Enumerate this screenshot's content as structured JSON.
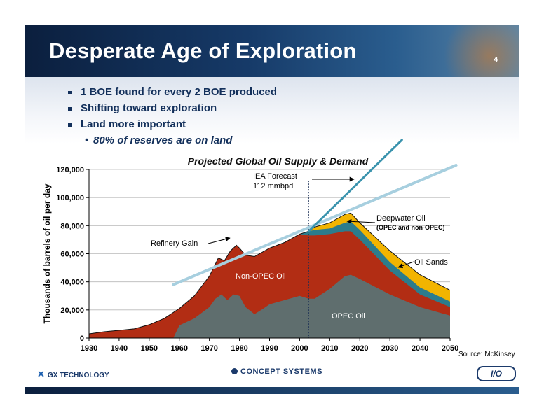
{
  "slide": {
    "title": "Desperate Age of Exploration",
    "page_number": "4",
    "bullets": [
      "1 BOE found for every 2 BOE produced",
      "Shifting toward exploration",
      "Land more important"
    ],
    "sub_bullet": "80% of reserves are on land",
    "source": "Source: McKinsey",
    "logos": [
      "GX TECHNOLOGY",
      "CONCEPT SYSTEMS",
      "I/O"
    ]
  },
  "chart_data": {
    "type": "area",
    "title": "Projected Global Oil Supply & Demand",
    "ylabel": "Thousands of barrels of oil per day",
    "xlabel": "",
    "xlim": [
      1930,
      2050
    ],
    "ylim": [
      0,
      120000
    ],
    "x_ticks": [
      1930,
      1940,
      1950,
      1960,
      1970,
      1980,
      1990,
      2000,
      2010,
      2020,
      2030,
      2040,
      2050
    ],
    "y_ticks": [
      0,
      20000,
      40000,
      60000,
      80000,
      100000,
      120000
    ],
    "y_tick_labels": [
      "0",
      "20,000",
      "40,000",
      "60,000",
      "80,000",
      "100,000",
      "120,000"
    ],
    "stack_order": [
      "OPEC Oil",
      "Non-OPEC Oil",
      "Deepwater Oil",
      "Oil Sands"
    ],
    "colors": {
      "opec": "#5f6e6e",
      "nonopec": "#b22d14",
      "deepwater": "#2c7c8c",
      "oilsands": "#f2b400",
      "trend": "#a7cfdf",
      "forecast": "#3a93ad"
    },
    "stack_top_points": [
      [
        1930,
        3000
      ],
      [
        1935,
        4500
      ],
      [
        1940,
        5500
      ],
      [
        1945,
        6500
      ],
      [
        1950,
        9500
      ],
      [
        1955,
        14000
      ],
      [
        1960,
        21000
      ],
      [
        1965,
        30000
      ],
      [
        1970,
        44000
      ],
      [
        1973,
        57000
      ],
      [
        1975,
        55000
      ],
      [
        1977,
        62000
      ],
      [
        1979,
        66000
      ],
      [
        1980,
        64000
      ],
      [
        1982,
        59000
      ],
      [
        1985,
        58000
      ],
      [
        1990,
        64000
      ],
      [
        1995,
        68000
      ],
      [
        2000,
        74000
      ],
      [
        2003,
        76000
      ],
      [
        2005,
        79000
      ],
      [
        2010,
        82000
      ],
      [
        2015,
        88000
      ],
      [
        2017,
        89000
      ],
      [
        2020,
        82000
      ],
      [
        2030,
        62000
      ],
      [
        2040,
        45000
      ],
      [
        2050,
        34000
      ]
    ],
    "series": [
      {
        "name": "OPEC Oil",
        "points": [
          [
            1930,
            0
          ],
          [
            1958,
            0
          ],
          [
            1960,
            9000
          ],
          [
            1965,
            14000
          ],
          [
            1970,
            22000
          ],
          [
            1972,
            28000
          ],
          [
            1974,
            31000
          ],
          [
            1976,
            27000
          ],
          [
            1978,
            31000
          ],
          [
            1980,
            30000
          ],
          [
            1982,
            22000
          ],
          [
            1985,
            17000
          ],
          [
            1988,
            21000
          ],
          [
            1990,
            24000
          ],
          [
            1995,
            27000
          ],
          [
            2000,
            30000
          ],
          [
            2003,
            28000
          ],
          [
            2005,
            28000
          ],
          [
            2010,
            35000
          ],
          [
            2015,
            44000
          ],
          [
            2017,
            45000
          ],
          [
            2020,
            42000
          ],
          [
            2030,
            31000
          ],
          [
            2040,
            22000
          ],
          [
            2050,
            16000
          ]
        ]
      },
      {
        "name": "Non-OPEC Oil",
        "points": [
          [
            1930,
            3000
          ],
          [
            1935,
            4500
          ],
          [
            1940,
            5500
          ],
          [
            1945,
            6500
          ],
          [
            1950,
            9500
          ],
          [
            1955,
            14000
          ],
          [
            1960,
            21000
          ],
          [
            1965,
            30000
          ],
          [
            1970,
            44000
          ],
          [
            1973,
            57000
          ],
          [
            1975,
            55000
          ],
          [
            1977,
            62000
          ],
          [
            1979,
            66000
          ],
          [
            1980,
            64000
          ],
          [
            1982,
            59000
          ],
          [
            1985,
            58000
          ],
          [
            1990,
            64000
          ],
          [
            1995,
            68000
          ],
          [
            2000,
            74000
          ],
          [
            2003,
            73000
          ],
          [
            2005,
            73000
          ],
          [
            2010,
            74000
          ],
          [
            2015,
            76000
          ],
          [
            2017,
            76000
          ],
          [
            2020,
            70000
          ],
          [
            2030,
            48000
          ],
          [
            2040,
            31000
          ],
          [
            2050,
            22000
          ]
        ]
      },
      {
        "name": "Deepwater Oil",
        "points": [
          [
            2003,
            76000
          ],
          [
            2005,
            77000
          ],
          [
            2010,
            78000
          ],
          [
            2015,
            82000
          ],
          [
            2017,
            83000
          ],
          [
            2020,
            77000
          ],
          [
            2030,
            54000
          ],
          [
            2040,
            36000
          ],
          [
            2050,
            26000
          ]
        ]
      },
      {
        "name": "Oil Sands",
        "points": [
          [
            2003,
            76000
          ],
          [
            2005,
            79000
          ],
          [
            2010,
            82000
          ],
          [
            2015,
            88000
          ],
          [
            2017,
            89000
          ],
          [
            2020,
            82000
          ],
          [
            2030,
            62000
          ],
          [
            2040,
            45000
          ],
          [
            2050,
            34000
          ]
        ]
      }
    ],
    "trend_line": [
      [
        1958,
        38000
      ],
      [
        2052,
        123000
      ]
    ],
    "forecast_line": [
      [
        2003,
        76000
      ],
      [
        2034,
        141000
      ]
    ],
    "forecast_year": 2003,
    "annotations": {
      "iea_line1": "IEA Forecast",
      "iea_line2": "112 mmbpd",
      "refinery": "Refinery Gain",
      "deepwater_line1": "Deepwater Oil",
      "deepwater_line2": "(OPEC and non-OPEC)",
      "oilsands": "Oil Sands",
      "nonopec": "Non-OPEC Oil",
      "opec": "OPEC Oil"
    }
  }
}
